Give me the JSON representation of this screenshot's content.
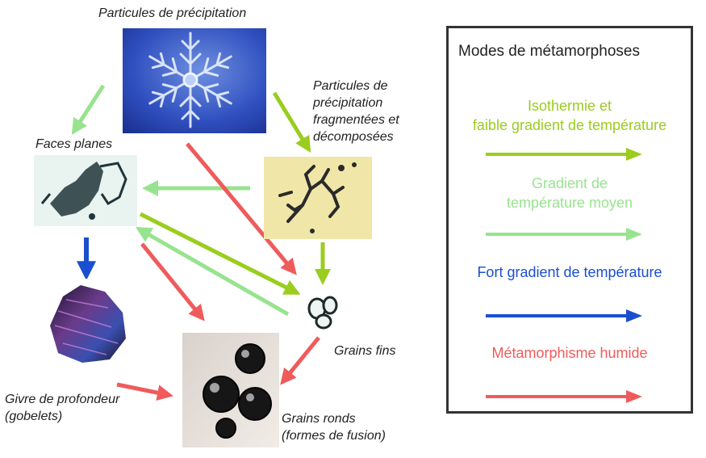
{
  "nodes": {
    "precip": "Particules de précipitation",
    "fragment": "Particules de précipitation fragmentées et décomposées",
    "faces": "Faces planes",
    "givre_line1": "Givre de profondeur",
    "givre_line2": "(gobelets)",
    "fins": "Grains fins",
    "ronds_line1": "Grains ronds",
    "ronds_line2": "(formes de fusion)"
  },
  "fragment_lines": [
    "Particules de",
    "précipitation",
    "fragmentées et",
    "décomposées"
  ],
  "legend": {
    "title": "Modes de métamorphoses",
    "items": [
      {
        "line1": "Isothermie et",
        "line2": "faible gradient de température",
        "color": "#9acd1e"
      },
      {
        "line1": "Gradient de",
        "line2": "température moyen",
        "color": "#98e38f"
      },
      {
        "line1": "Fort gradient de température",
        "line2": "",
        "color": "#1a4fd0"
      },
      {
        "line1": "Métamorphisme humide",
        "line2": "",
        "color": "#ef5b5b"
      }
    ]
  },
  "colors": {
    "yellow_green": "#9acd1e",
    "light_green": "#98e38f",
    "blue": "#1a4fd0",
    "red": "#ef5b5b"
  }
}
